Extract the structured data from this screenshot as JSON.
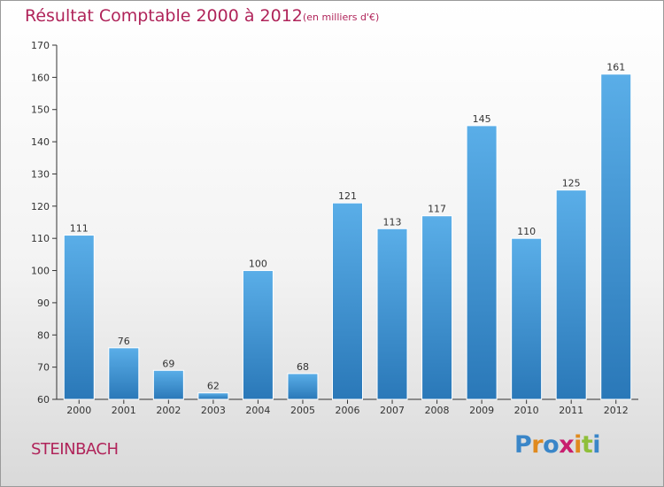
{
  "chart_data": {
    "type": "bar",
    "title": "Résultat Comptable 2000 à 2012",
    "subtitle": "(en milliers d'€)",
    "categories": [
      "2000",
      "2001",
      "2002",
      "2003",
      "2004",
      "2005",
      "2006",
      "2007",
      "2008",
      "2009",
      "2010",
      "2011",
      "2012"
    ],
    "values": [
      111,
      76,
      69,
      62,
      100,
      68,
      121,
      113,
      117,
      145,
      110,
      125,
      161
    ],
    "xlabel": "",
    "ylabel": "",
    "ylim": [
      60,
      170
    ],
    "yticks": [
      60,
      70,
      80,
      90,
      100,
      110,
      120,
      130,
      140,
      150,
      160,
      170
    ],
    "grid": false,
    "bar_color_top": "#5aaee8",
    "bar_color_bottom": "#2a78b8"
  },
  "footer": {
    "town": "STEINBACH",
    "logo": [
      "P",
      "r",
      "o",
      "x",
      "i",
      "t",
      "i"
    ]
  },
  "colors": {
    "title": "#b0245a",
    "logo": [
      "#3a86c8",
      "#e08a1e",
      "#3a86c8",
      "#c81e6e",
      "#e08a1e",
      "#8fbf3a",
      "#3a86c8"
    ]
  }
}
